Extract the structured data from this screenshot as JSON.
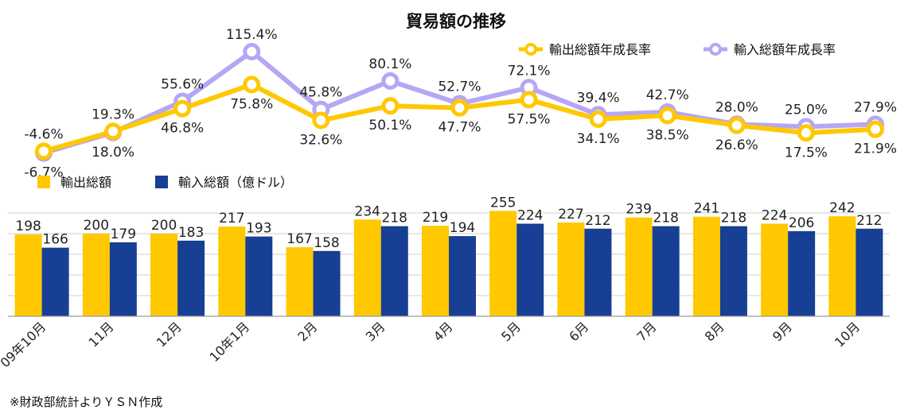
{
  "title": "貿易額の推移",
  "source": "※財政部統計よりＹＳＮ作成",
  "colors": {
    "export_bar": "#FFC800",
    "import_bar": "#173F93",
    "export_line": "#FFC800",
    "import_line": "#B7A6F4",
    "background": "#FFFFFF",
    "grid": "#CFCFCF"
  },
  "chart_data": [
    {
      "type": "line",
      "categories": [
        "09年10月",
        "11月",
        "12月",
        "10年1月",
        "2月",
        "3月",
        "4月",
        "5月",
        "6月",
        "7月",
        "8月",
        "9月",
        "10月"
      ],
      "series": [
        {
          "name": "輸出総額年成長率",
          "values": [
            -4.6,
            19.3,
            46.8,
            75.8,
            32.6,
            50.1,
            47.7,
            57.5,
            34.1,
            38.5,
            26.6,
            17.5,
            21.9
          ],
          "labels": [
            "-4.6%",
            "19.3%",
            "46.8%",
            "75.8%",
            "32.6%",
            "50.1%",
            "47.7%",
            "57.5%",
            "34.1%",
            "38.5%",
            "26.6%",
            "17.5%",
            "21.9%"
          ]
        },
        {
          "name": "輸入総額年成長率",
          "values": [
            -6.7,
            18.0,
            55.6,
            115.4,
            45.8,
            80.1,
            52.7,
            72.1,
            39.4,
            42.7,
            28.0,
            25.0,
            27.9
          ],
          "labels": [
            "-6.7%",
            "18.0%",
            "55.6%",
            "115.4%",
            "45.8%",
            "80.1%",
            "52.7%",
            "72.1%",
            "39.4%",
            "42.7%",
            "28.0%",
            "25.0%",
            "27.9%"
          ]
        }
      ],
      "legend": "top-right",
      "grid": false,
      "ylim": [
        -10,
        125
      ]
    },
    {
      "type": "bar",
      "categories": [
        "09年10月",
        "11月",
        "12月",
        "10年1月",
        "2月",
        "3月",
        "4月",
        "5月",
        "6月",
        "7月",
        "8月",
        "9月",
        "10月"
      ],
      "series": [
        {
          "name": "輸出総額",
          "values": [
            198,
            200,
            200,
            217,
            167,
            234,
            219,
            255,
            227,
            239,
            241,
            224,
            242
          ]
        },
        {
          "name": "輸入総額（億ドル）",
          "values": [
            166,
            179,
            183,
            193,
            158,
            218,
            194,
            224,
            212,
            218,
            218,
            206,
            212
          ]
        }
      ],
      "legend": "top-left",
      "grid": true,
      "ylim": [
        0,
        300
      ],
      "yticks": [
        0,
        50,
        100,
        150,
        200,
        250
      ]
    }
  ]
}
